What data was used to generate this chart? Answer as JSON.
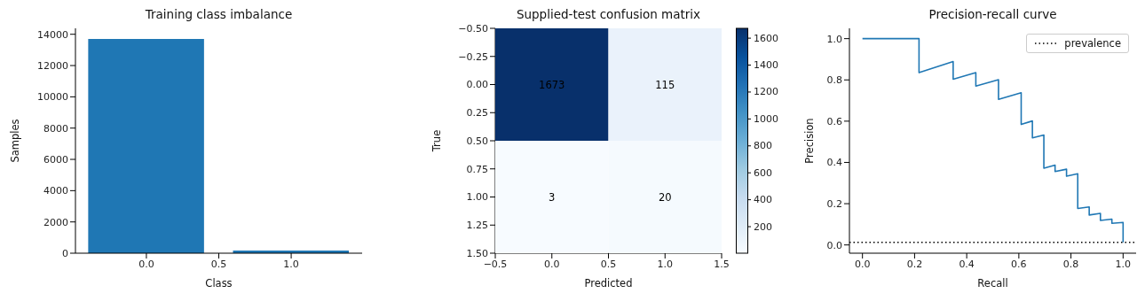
{
  "chart_data": [
    {
      "type": "bar",
      "title": "Training class imbalance",
      "xlabel": "Class",
      "ylabel": "Samples",
      "x": [
        0,
        1
      ],
      "values": [
        13700,
        170
      ],
      "color": "#1f77b4",
      "xlim": [
        -0.49,
        1.49
      ],
      "xticks": [
        {
          "value": 0,
          "label": "0.0"
        },
        {
          "value": 0.5,
          "label": "0.5"
        },
        {
          "value": 1,
          "label": "1.0"
        }
      ],
      "ylim": [
        0,
        14380
      ],
      "yticks": [
        0,
        2000,
        4000,
        6000,
        8000,
        10000,
        12000,
        14000
      ],
      "grid": false
    },
    {
      "type": "heatmap",
      "title": "Supplied-test confusion matrix",
      "xlabel": "Predicted",
      "ylabel": "True",
      "grid": false,
      "cells": [
        [
          1673,
          115
        ],
        [
          3,
          20
        ]
      ],
      "data_labels": true,
      "clim": [
        3,
        1673
      ],
      "cticks": [
        200,
        400,
        600,
        800,
        1000,
        1200,
        1400,
        1600
      ],
      "xlim": [
        -0.5,
        1.5
      ],
      "xticks": [
        {
          "value": -0.5,
          "label": "−0.5"
        },
        {
          "value": 0,
          "label": "0.0"
        },
        {
          "value": 0.5,
          "label": "0.5"
        },
        {
          "value": 1,
          "label": "1.0"
        },
        {
          "value": 1.5,
          "label": "1.5"
        }
      ],
      "ylim": [
        1.5,
        -0.5
      ],
      "yticks": [
        {
          "value": -0.5,
          "label": "−0.50"
        },
        {
          "value": -0.25,
          "label": "−0.25"
        },
        {
          "value": 0,
          "label": "0.00"
        },
        {
          "value": 0.25,
          "label": "0.25"
        },
        {
          "value": 0.5,
          "label": "0.50"
        },
        {
          "value": 0.75,
          "label": "0.75"
        },
        {
          "value": 1,
          "label": "1.00"
        },
        {
          "value": 1.25,
          "label": "1.25"
        },
        {
          "value": 1.5,
          "label": "1.50"
        }
      ]
    },
    {
      "type": "line",
      "title": "Precision-recall curve",
      "xlabel": "Recall",
      "ylabel": "Precision",
      "x": [
        0,
        0.217,
        0.217,
        0.348,
        0.348,
        0.435,
        0.435,
        0.522,
        0.522,
        0.609,
        0.609,
        0.652,
        0.652,
        0.696,
        0.696,
        0.739,
        0.739,
        0.783,
        0.783,
        0.826,
        0.826,
        0.87,
        0.87,
        0.913,
        0.913,
        0.957,
        0.957,
        1.0,
        1.0
      ],
      "values": [
        1.0,
        1.0,
        0.835,
        0.889,
        0.803,
        0.835,
        0.77,
        0.801,
        0.706,
        0.738,
        0.584,
        0.601,
        0.519,
        0.533,
        0.372,
        0.387,
        0.356,
        0.367,
        0.333,
        0.345,
        0.177,
        0.184,
        0.145,
        0.153,
        0.119,
        0.125,
        0.105,
        0.109,
        0.013
      ],
      "color": "#1f77b4",
      "marker": "none",
      "line_style": "solid",
      "ref_lines": [
        {
          "axis": "y",
          "value": 0.013,
          "label": "prevalence",
          "color": "#000000",
          "line_style": "dotted"
        }
      ],
      "legend": "top right",
      "grid": false,
      "xlim": [
        -0.05,
        1.05
      ],
      "xticks": [
        {
          "value": 0,
          "label": "0.0"
        },
        {
          "value": 0.2,
          "label": "0.2"
        },
        {
          "value": 0.4,
          "label": "0.4"
        },
        {
          "value": 0.6,
          "label": "0.6"
        },
        {
          "value": 0.8,
          "label": "0.8"
        },
        {
          "value": 1,
          "label": "1.0"
        }
      ],
      "ylim": [
        -0.04,
        1.05
      ],
      "yticks": [
        {
          "value": 0,
          "label": "0.0"
        },
        {
          "value": 0.2,
          "label": "0.2"
        },
        {
          "value": 0.4,
          "label": "0.4"
        },
        {
          "value": 0.6,
          "label": "0.6"
        },
        {
          "value": 0.8,
          "label": "0.8"
        },
        {
          "value": 1,
          "label": "1.0"
        }
      ]
    }
  ]
}
